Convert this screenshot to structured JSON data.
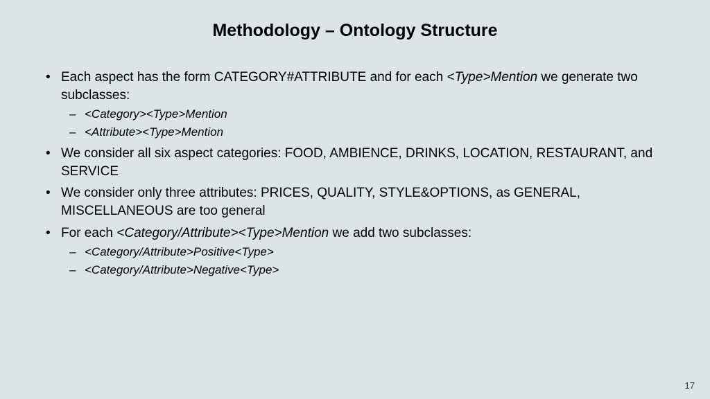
{
  "background_color": "#dde4e8",
  "text_color": "#000000",
  "title": "Methodology – Ontology Structure",
  "title_fontsize": 25,
  "body_fontsize": 19,
  "sub_fontsize": 17,
  "page_number": "17",
  "bullets": {
    "b1_pre": "Each aspect has the form CATEGORY#ATTRIBUTE and for each ",
    "b1_it": "<Type>Mention",
    "b1_post": " we generate two subclasses:",
    "b1_s1": "<Category><Type>Mention",
    "b1_s2": "<Attribute><Type>Mention",
    "b2": "We consider all six aspect categories: FOOD, AMBIENCE, DRINKS, LOCATION, RESTAURANT, and SERVICE",
    "b3": " We consider only three attributes: PRICES, QUALITY, STYLE&OPTIONS, as GENERAL, MISCELLANEOUS are too general",
    "b4_pre": "For each ",
    "b4_it": "<Category/Attribute><Type>Mention",
    "b4_post": " we add two subclasses:",
    "b4_s1": "<Category/Attribute>Positive<Type>",
    "b4_s2": "<Category/Attribute>Negative<Type>"
  }
}
